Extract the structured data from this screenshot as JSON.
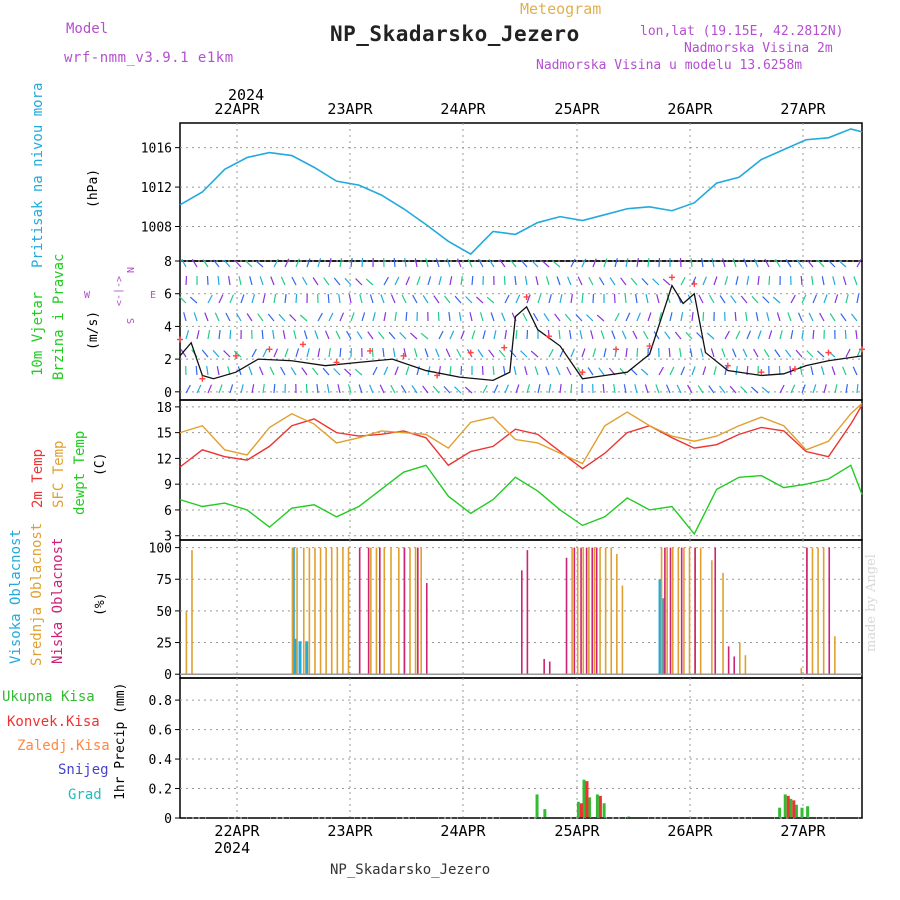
{
  "header": {
    "model_label": "Model",
    "model_name": "wrf-nmm_v3.9.1 e1km",
    "title": "Meteogram",
    "station": "NP_Skadarsko_Jezero",
    "lonlat": "lon,lat (19.15E, 42.2812N)",
    "altitude": "Nadmorska Visina 2m",
    "model_altitude": "Nadmorska Visina u modelu 13.6258m"
  },
  "footer": {
    "station": "NP_Skadarsko_Jezero"
  },
  "credit": "made by Angel",
  "colors": {
    "pressure": "#22aadd",
    "wind_speed": "#111111",
    "gust": "#ff4444",
    "temp2m": "#ee3333",
    "sfc_temp": "#e0a030",
    "dewpoint": "#22cc22",
    "high_cloud": "#22aadd",
    "mid_cloud": "#e0a030",
    "low_cloud": "#cc2277",
    "total_precip": "#33bb33",
    "conv_precip": "#ee3333",
    "frozen_precip": "#ff8844",
    "snow": "#4444cc",
    "hail": "#22bbbb",
    "wind_compass": "#b44fd0"
  },
  "chart_data": [
    {
      "type": "line",
      "panel": "pressure",
      "ylabel": "Pritisak na nivou mora",
      "unit": "(hPa)",
      "yticks": [
        "1016",
        "1012",
        "1008"
      ],
      "ylim": [
        1004.5,
        1018.5
      ],
      "top_axis_year": "2024",
      "x_day_labels": [
        "22APR",
        "23APR",
        "24APR",
        "25APR",
        "26APR",
        "27APR"
      ],
      "x": [
        0,
        0.2,
        0.4,
        0.6,
        0.8,
        1.0,
        1.2,
        1.4,
        1.6,
        1.8,
        2.0,
        2.2,
        2.4,
        2.6,
        2.8,
        3.0,
        3.2,
        3.4,
        3.6,
        3.8,
        4.0,
        4.2,
        4.4,
        4.6,
        4.8,
        5.0,
        5.2,
        5.4,
        5.6,
        5.8,
        6.0,
        6.1
      ],
      "values": [
        1010.2,
        1011.5,
        1013.8,
        1015.0,
        1015.5,
        1015.2,
        1014.0,
        1012.6,
        1012.2,
        1011.2,
        1009.8,
        1008.2,
        1006.5,
        1005.2,
        1007.5,
        1007.2,
        1008.4,
        1009.0,
        1008.6,
        1009.2,
        1009.8,
        1010.0,
        1009.6,
        1010.4,
        1012.4,
        1013.0,
        1014.8,
        1015.8,
        1016.8,
        1017.0,
        1017.9,
        1017.6
      ]
    },
    {
      "type": "line",
      "panel": "wind",
      "ylabel": "10m Vjetar",
      "ylabel2": "Brzina i Pravac",
      "unit": "(m/s)",
      "yticks": [
        "8",
        "6",
        "4",
        "2",
        "0"
      ],
      "ylim": [
        -0.5,
        8
      ],
      "compass": {
        "n": "N",
        "s": "S",
        "w": "W",
        "e": "E",
        "arrows": "<-|->"
      },
      "series": [
        {
          "kind": "speed",
          "x": [
            0,
            0.1,
            0.2,
            0.3,
            0.5,
            0.7,
            1.0,
            1.3,
            1.6,
            1.9,
            2.2,
            2.5,
            2.8,
            2.95,
            3.0,
            3.1,
            3.2,
            3.4,
            3.6,
            3.8,
            4.0,
            4.2,
            4.4,
            4.5,
            4.6,
            4.7,
            4.9,
            5.2,
            5.4,
            5.6,
            5.8,
            6.1
          ],
          "values": [
            2.2,
            3.0,
            1.0,
            0.8,
            1.2,
            2.0,
            1.9,
            1.6,
            1.8,
            2.0,
            1.3,
            0.9,
            0.7,
            1.2,
            4.6,
            5.2,
            3.8,
            2.8,
            0.8,
            1.0,
            1.2,
            2.3,
            6.5,
            5.4,
            6.0,
            2.4,
            1.3,
            1.0,
            1.1,
            1.6,
            1.9,
            2.2
          ]
        },
        {
          "kind": "gust",
          "x": [
            0,
            0.2,
            0.5,
            0.8,
            1.1,
            1.4,
            1.7,
            2.0,
            2.3,
            2.6,
            2.9,
            3.1,
            3.3,
            3.6,
            3.9,
            4.2,
            4.4,
            4.6,
            4.9,
            5.2,
            5.5,
            5.8,
            6.1
          ],
          "values": [
            3.2,
            0.8,
            2.2,
            2.6,
            2.9,
            1.8,
            2.5,
            2.2,
            1.0,
            2.4,
            2.7,
            5.8,
            3.4,
            1.2,
            2.6,
            2.8,
            7.0,
            6.6,
            1.6,
            1.2,
            1.4,
            2.4,
            2.6
          ]
        }
      ]
    },
    {
      "type": "line",
      "panel": "temperature",
      "ylabel_2m": "2m Temp",
      "ylabel_sfc": "SFC Temp",
      "ylabel_dew": "dewpt Temp",
      "unit": "(C)",
      "yticks": [
        "18",
        "15",
        "12",
        "9",
        "6",
        "3"
      ],
      "ylim": [
        2.5,
        18.8
      ],
      "x": [
        0,
        0.2,
        0.4,
        0.6,
        0.8,
        1.0,
        1.2,
        1.4,
        1.6,
        1.8,
        2.0,
        2.2,
        2.4,
        2.6,
        2.8,
        3.0,
        3.2,
        3.4,
        3.6,
        3.8,
        4.0,
        4.2,
        4.4,
        4.6,
        4.8,
        5.0,
        5.2,
        5.4,
        5.6,
        5.8,
        6.0,
        6.1
      ],
      "series": [
        {
          "name": "2m Temp",
          "values": [
            11.0,
            13.0,
            12.2,
            11.8,
            13.4,
            15.8,
            16.6,
            15.0,
            14.6,
            14.8,
            15.2,
            14.4,
            11.2,
            12.8,
            13.4,
            15.4,
            14.8,
            12.8,
            10.8,
            12.6,
            15.0,
            15.8,
            14.4,
            13.2,
            13.6,
            14.8,
            15.6,
            15.2,
            12.8,
            12.2,
            16.0,
            18.2
          ]
        },
        {
          "name": "SFC Temp",
          "values": [
            15.0,
            15.8,
            13.0,
            12.4,
            15.6,
            17.2,
            16.0,
            13.8,
            14.4,
            15.2,
            15.0,
            14.8,
            13.2,
            16.2,
            16.8,
            14.2,
            13.8,
            12.6,
            11.4,
            15.8,
            17.4,
            15.8,
            14.6,
            14.0,
            14.6,
            15.8,
            16.8,
            15.8,
            13.0,
            14.0,
            17.2,
            18.4
          ]
        },
        {
          "name": "dewpt Temp",
          "values": [
            7.2,
            6.4,
            6.8,
            6.0,
            4.0,
            6.2,
            6.6,
            5.2,
            6.4,
            8.4,
            10.4,
            11.2,
            7.6,
            5.6,
            7.2,
            9.8,
            8.2,
            6.0,
            4.2,
            5.2,
            7.4,
            6.0,
            6.4,
            3.2,
            8.4,
            9.8,
            10.0,
            8.6,
            9.0,
            9.6,
            11.2,
            7.8
          ]
        }
      ]
    },
    {
      "type": "bar",
      "panel": "cloud",
      "ylabel_high": "Visoka Oblacnost",
      "ylabel_mid": "Srednja Oblacnost",
      "ylabel_low": "Niska Oblacnost",
      "unit": "(%)",
      "yticks": [
        "100",
        "75",
        "50",
        "25",
        "0"
      ],
      "ylim": [
        -3,
        106
      ],
      "series": [
        {
          "name": "Visoka Oblacnost",
          "x": [
            1.0,
            1.02,
            1.06,
            1.12,
            4.28,
            4.31
          ],
          "values": [
            100,
            28,
            26,
            26,
            75,
            60
          ]
        },
        {
          "name": "Srednja Oblacnost",
          "x": [
            0.05,
            0.1,
            1.0,
            1.04,
            1.1,
            1.15,
            1.2,
            1.25,
            1.3,
            1.35,
            1.4,
            1.45,
            1.5,
            1.7,
            1.75,
            1.82,
            1.88,
            1.95,
            2.0,
            2.05,
            2.1,
            2.15,
            3.5,
            3.55,
            3.6,
            3.65,
            3.7,
            3.75,
            3.8,
            3.85,
            3.9,
            3.95,
            4.3,
            4.35,
            4.4,
            4.45,
            4.5,
            4.55,
            4.6,
            4.65,
            4.75,
            4.85,
            5.0,
            5.05,
            5.55,
            5.6,
            5.65,
            5.7,
            5.75,
            5.85
          ],
          "values": [
            50,
            98,
            100,
            100,
            100,
            100,
            100,
            100,
            100,
            100,
            100,
            100,
            100,
            100,
            100,
            100,
            100,
            100,
            100,
            100,
            100,
            100,
            100,
            100,
            100,
            100,
            100,
            100,
            100,
            100,
            95,
            70,
            100,
            100,
            100,
            100,
            100,
            100,
            100,
            100,
            90,
            80,
            25,
            15,
            5,
            100,
            100,
            100,
            100,
            30
          ]
        },
        {
          "name": "Niska Oblacnost",
          "x": [
            1.6,
            1.68,
            1.78,
            2.0,
            2.12,
            2.2,
            3.05,
            3.1,
            3.25,
            3.3,
            3.45,
            3.52,
            3.58,
            3.63,
            3.68,
            3.72,
            4.33,
            4.38,
            4.48,
            4.6,
            4.78,
            4.9,
            4.95,
            5.6,
            5.8
          ],
          "values": [
            100,
            100,
            100,
            100,
            100,
            72,
            82,
            98,
            12,
            10,
            92,
            100,
            100,
            100,
            100,
            100,
            100,
            100,
            100,
            100,
            100,
            22,
            14,
            100,
            100
          ]
        }
      ]
    },
    {
      "type": "bar",
      "panel": "precip",
      "ylabel": "1hr Precip (mm)",
      "legend": [
        "Ukupna Kisa",
        "Konvek.Kisa",
        "Zaledj.Kisa",
        "Snijeg",
        "Grad"
      ],
      "yticks": [
        "0.8",
        "0.6",
        "0.4",
        "0.2",
        "0"
      ],
      "ylim": [
        0,
        0.95
      ],
      "bottom_axis_year": "2024",
      "x_day_labels": [
        "22APR",
        "23APR",
        "24APR",
        "25APR",
        "26APR",
        "27APR"
      ],
      "series": [
        {
          "name": "Ukupna Kisa",
          "x": [
            3.18,
            3.25,
            3.55,
            3.6,
            3.65,
            3.72,
            3.78,
            4.0,
            5.35,
            5.4,
            5.45,
            5.5,
            5.55,
            5.6
          ],
          "values": [
            0.16,
            0.06,
            0.11,
            0.26,
            0.14,
            0.16,
            0.1,
            0.01,
            0.07,
            0.16,
            0.13,
            0.09,
            0.07,
            0.08
          ]
        },
        {
          "name": "Konvek.Kisa",
          "x": [
            3.55,
            3.6,
            3.72,
            5.4,
            5.45
          ],
          "values": [
            0.1,
            0.25,
            0.15,
            0.15,
            0.12
          ]
        }
      ]
    }
  ]
}
